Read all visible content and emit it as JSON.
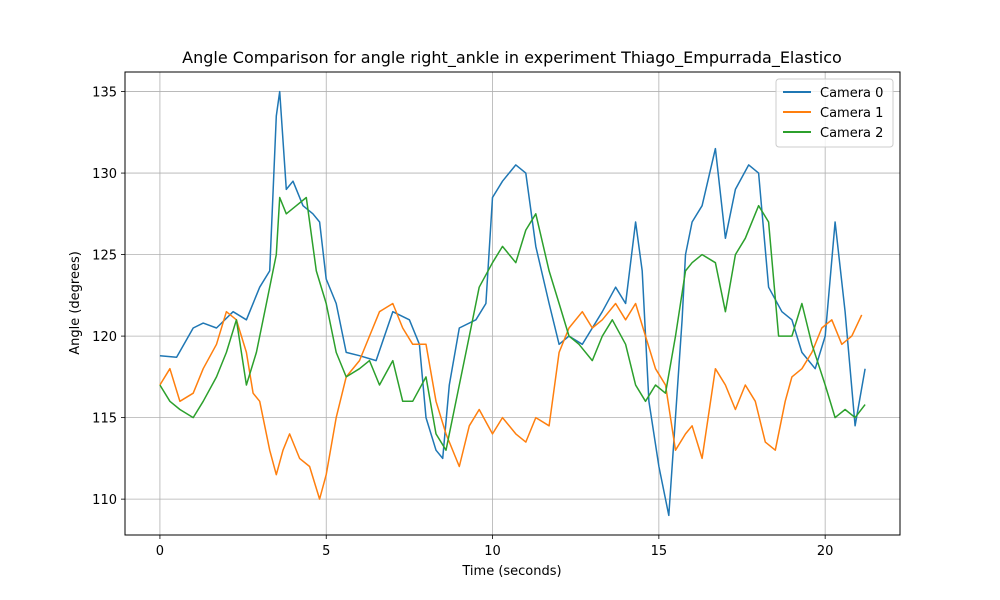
{
  "chart_data": {
    "type": "line",
    "title": "Angle Comparison for angle right_ankle in experiment Thiago_Empurrada_Elastico",
    "xlabel": "Time (seconds)",
    "ylabel": "Angle (degrees)",
    "xlim": [
      -1.05,
      22.25
    ],
    "ylim": [
      107.8,
      136.2
    ],
    "xticks": [
      0,
      5,
      10,
      15,
      20
    ],
    "yticks": [
      110,
      115,
      120,
      125,
      130,
      135
    ],
    "grid": true,
    "legend": "top-right",
    "series": [
      {
        "name": "Camera 0",
        "color": "#1f77b4",
        "x": [
          0,
          0.5,
          1,
          1.3,
          1.7,
          2.2,
          2.6,
          3.0,
          3.3,
          3.5,
          3.6,
          3.8,
          4.0,
          4.3,
          4.6,
          4.8,
          5.0,
          5.3,
          5.6,
          6.0,
          6.5,
          7.0,
          7.5,
          7.8,
          8.0,
          8.3,
          8.5,
          8.7,
          9.0,
          9.5,
          9.8,
          10.0,
          10.3,
          10.7,
          11.0,
          11.3,
          11.7,
          12.0,
          12.3,
          12.7,
          13.0,
          13.3,
          13.7,
          14.0,
          14.3,
          14.5,
          14.7,
          15.0,
          15.3,
          15.7,
          15.8,
          16.0,
          16.3,
          16.7,
          17.0,
          17.3,
          17.7,
          18.0,
          18.3,
          18.7,
          19.0,
          19.3,
          19.7,
          20.0,
          20.3,
          20.6,
          20.9,
          21.2
        ],
        "values": [
          118.8,
          118.7,
          120.5,
          120.8,
          120.5,
          121.5,
          121.0,
          123.0,
          124.0,
          133.5,
          135.0,
          129.0,
          129.5,
          128.0,
          127.5,
          127.0,
          123.5,
          122.0,
          119.0,
          118.8,
          118.5,
          121.5,
          121.0,
          119.5,
          115.0,
          113.0,
          112.5,
          117.0,
          120.5,
          121.0,
          122.0,
          128.5,
          129.5,
          130.5,
          130.0,
          125.5,
          122.0,
          119.5,
          120.0,
          119.5,
          120.5,
          121.5,
          123.0,
          122.0,
          127.0,
          124.0,
          116.0,
          112.0,
          109.0,
          121.0,
          125.0,
          127.0,
          128.0,
          131.5,
          126.0,
          129.0,
          130.5,
          130.0,
          123.0,
          121.5,
          121.0,
          119.0,
          118.0,
          120.0,
          127.0,
          121.5,
          114.5,
          118.0
        ]
      },
      {
        "name": "Camera 1",
        "color": "#ff7f0e",
        "x": [
          0,
          0.3,
          0.6,
          1.0,
          1.3,
          1.7,
          2.0,
          2.3,
          2.6,
          2.8,
          3.0,
          3.3,
          3.5,
          3.7,
          3.9,
          4.2,
          4.5,
          4.8,
          5.0,
          5.3,
          5.6,
          6.0,
          6.3,
          6.6,
          7.0,
          7.3,
          7.6,
          8.0,
          8.3,
          8.6,
          9.0,
          9.3,
          9.6,
          10.0,
          10.3,
          10.7,
          11.0,
          11.3,
          11.7,
          12.0,
          12.3,
          12.7,
          13.0,
          13.3,
          13.7,
          14.0,
          14.3,
          14.6,
          14.9,
          15.2,
          15.5,
          15.8,
          16.0,
          16.3,
          16.7,
          17.0,
          17.3,
          17.6,
          17.9,
          18.2,
          18.5,
          18.8,
          19.0,
          19.3,
          19.6,
          19.9,
          20.2,
          20.5,
          20.8,
          21.1
        ],
        "values": [
          117.0,
          118.0,
          116.0,
          116.5,
          118.0,
          119.5,
          121.5,
          121.0,
          119.0,
          116.5,
          116.0,
          113.0,
          111.5,
          113.0,
          114.0,
          112.5,
          112.0,
          110.0,
          111.5,
          115.0,
          117.5,
          118.5,
          120.0,
          121.5,
          122.0,
          120.5,
          119.5,
          119.5,
          116.0,
          114.0,
          112.0,
          114.5,
          115.5,
          114.0,
          115.0,
          114.0,
          113.5,
          115.0,
          114.5,
          119.0,
          120.5,
          121.5,
          120.5,
          121.0,
          122.0,
          121.0,
          122.0,
          120.0,
          118.0,
          117.0,
          113.0,
          114.0,
          114.5,
          112.5,
          118.0,
          117.0,
          115.5,
          117.0,
          116.0,
          113.5,
          113.0,
          116.0,
          117.5,
          118.0,
          119.0,
          120.5,
          121.0,
          119.5,
          120.0,
          121.3
        ]
      },
      {
        "name": "Camera 2",
        "color": "#2ca02c",
        "x": [
          0,
          0.3,
          0.6,
          1.0,
          1.3,
          1.7,
          2.0,
          2.3,
          2.6,
          2.9,
          3.2,
          3.5,
          3.6,
          3.8,
          4.1,
          4.4,
          4.7,
          5.0,
          5.3,
          5.6,
          6.0,
          6.3,
          6.6,
          7.0,
          7.3,
          7.6,
          8.0,
          8.3,
          8.6,
          9.0,
          9.3,
          9.6,
          10.0,
          10.3,
          10.7,
          11.0,
          11.3,
          11.7,
          12.0,
          12.3,
          12.6,
          13.0,
          13.3,
          13.6,
          14.0,
          14.3,
          14.6,
          14.9,
          15.2,
          15.5,
          15.8,
          16.0,
          16.3,
          16.7,
          17.0,
          17.3,
          17.6,
          18.0,
          18.3,
          18.6,
          19.0,
          19.3,
          19.6,
          20.0,
          20.3,
          20.6,
          20.9,
          21.2
        ],
        "values": [
          117.0,
          116.0,
          115.5,
          115.0,
          116.0,
          117.5,
          119.0,
          121.0,
          117.0,
          119.0,
          122.0,
          125.0,
          128.5,
          127.5,
          128.0,
          128.5,
          124.0,
          122.0,
          119.0,
          117.5,
          118.0,
          118.5,
          117.0,
          118.5,
          116.0,
          116.0,
          117.5,
          114.0,
          113.0,
          117.0,
          120.0,
          123.0,
          124.5,
          125.5,
          124.5,
          126.5,
          127.5,
          124.0,
          122.0,
          120.0,
          119.5,
          118.5,
          120.0,
          121.0,
          119.5,
          117.0,
          116.0,
          117.0,
          116.5,
          120.0,
          124.0,
          124.5,
          125.0,
          124.5,
          121.5,
          125.0,
          126.0,
          128.0,
          127.0,
          120.0,
          120.0,
          122.0,
          119.5,
          117.0,
          115.0,
          115.5,
          115.0,
          115.8
        ]
      }
    ]
  }
}
